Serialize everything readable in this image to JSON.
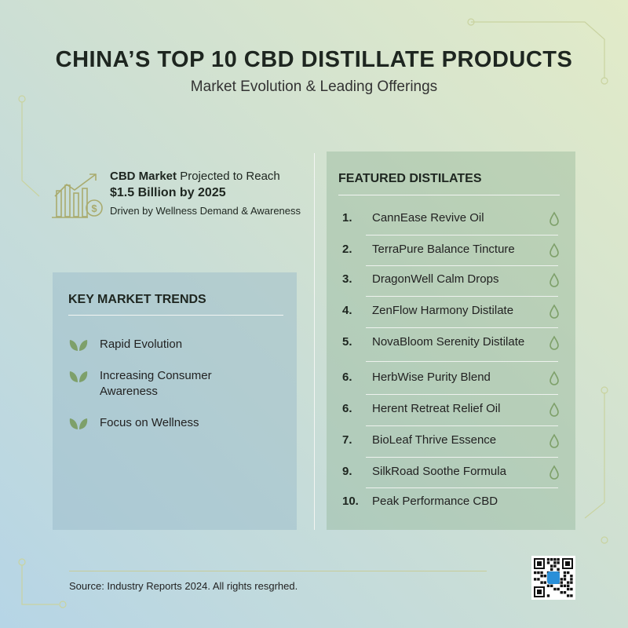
{
  "header": {
    "title": "CHINA’S TOP 10 CBD DISTILLATE PRODUCTS",
    "subtitle": "Market Evolution & Leading Offerings"
  },
  "market": {
    "line1_bold": "CBD Market",
    "line1_rest": " Projected to Reach",
    "line2": "$1.5 Billion by 2025",
    "line3": "Driven by Wellness Demand & Awareness"
  },
  "trends": {
    "title": "KEY MARKET TRENDS",
    "items": [
      "Rapid Evolution",
      "Increasing Consumer Awareness",
      "Focus on Wellness"
    ]
  },
  "featured": {
    "title": "FEATURED DISTILATES",
    "items": [
      {
        "number": "1.",
        "name": "CannEase Revive Oil"
      },
      {
        "number": "2.",
        "name": "TerraPure Balance Tincture"
      },
      {
        "number": "3.",
        "name": "DragonWell Calm Drops"
      },
      {
        "number": "4.",
        "name": "ZenFlow Harmony Distilate"
      },
      {
        "number": "5.",
        "name": "NovaBloom Serenity Distilate"
      },
      {
        "number": "6.",
        "name": "HerbWise Purity Blend"
      },
      {
        "number": "6.",
        "name": "Herent Retreat Relief Oil"
      },
      {
        "number": "7.",
        "name": "BioLeaf Thrive Essence"
      },
      {
        "number": "9.",
        "name": "SilkRoad Soothe Formula"
      },
      {
        "number": "10.",
        "name": "Peak Performance CBD"
      }
    ]
  },
  "footer": {
    "source": "Source: Industry Reports 2024. All rights resgrhed."
  }
}
